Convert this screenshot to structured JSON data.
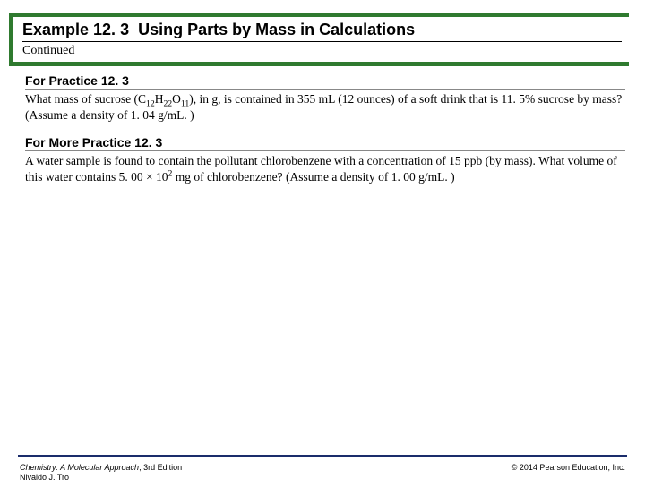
{
  "colors": {
    "accent_border": "#2f7a2f",
    "footer_rule": "#1a2c6b",
    "text": "#000000",
    "background": "#ffffff",
    "section_rule": "#888888"
  },
  "title": {
    "label": "Example 12. 3",
    "text": "Using Parts by Mass in Calculations",
    "continued": "Continued"
  },
  "practice": {
    "heading": "For Practice 12. 3",
    "text_pre": "What mass of sucrose (C",
    "sub1": "12",
    "mid1": "H",
    "sub2": "22",
    "mid2": "O",
    "sub3": "11",
    "text_post": "), in g, is contained in 355 mL (12 ounces) of a soft drink that is 11. 5% sucrose by mass? (Assume a density of 1. 04 g/mL. )"
  },
  "more_practice": {
    "heading": "For More Practice 12. 3",
    "text_pre": "A water sample is found to contain the pollutant chlorobenzene with a concentration of 15 ppb (by mass). What volume of this water contains 5. 00 × 10",
    "sup": "2",
    "text_post": " mg of chlorobenzene? (Assume a density of 1. 00 g/mL. )"
  },
  "footer": {
    "book": "Chemistry: A Molecular Approach",
    "edition": ", 3rd Edition",
    "author": "Nivaldo J. Tro",
    "copyright": "© 2014 Pearson Education, Inc."
  }
}
